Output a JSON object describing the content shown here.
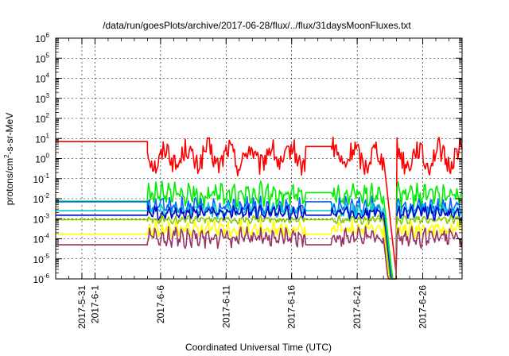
{
  "chart_data": {
    "type": "line",
    "title": "/data/run/goesPlots/archive/2017-06-28/flux/../flux/31daysMoonFluxes.txt",
    "xlabel": "Coordinated Universal Time (UTC)",
    "ylabel": "protons/cm2-s-sr-MeV",
    "ylabel_parts": {
      "base": "protons/cm",
      "sup": "2",
      "rest": "-s-sr-MeV"
    },
    "yscale": "log",
    "ylim": [
      1e-06,
      1000000.0
    ],
    "y_ticks": [
      {
        "base": "10",
        "exp": "-6"
      },
      {
        "base": "10",
        "exp": "-5"
      },
      {
        "base": "10",
        "exp": "-4"
      },
      {
        "base": "10",
        "exp": "-3"
      },
      {
        "base": "10",
        "exp": "-2"
      },
      {
        "base": "10",
        "exp": "-1"
      },
      {
        "base": "10",
        "exp": "0"
      },
      {
        "base": "10",
        "exp": "1"
      },
      {
        "base": "10",
        "exp": "2"
      },
      {
        "base": "10",
        "exp": "3"
      },
      {
        "base": "10",
        "exp": "4"
      },
      {
        "base": "10",
        "exp": "5"
      },
      {
        "base": "10",
        "exp": "6"
      }
    ],
    "xlim": [
      "2017-05-29",
      "2017-06-29"
    ],
    "x_ticks": [
      {
        "date": "2017-05-31",
        "label": "2017-5-31"
      },
      {
        "date": "2017-06-01",
        "label": "2017-6-1"
      },
      {
        "date": "2017-06-06",
        "label": "2017-6-6"
      },
      {
        "date": "2017-06-11",
        "label": "2017-6-11"
      },
      {
        "date": "2017-06-16",
        "label": "2017-6-16"
      },
      {
        "date": "2017-06-21",
        "label": "2017-6-21"
      },
      {
        "date": "2017-06-26",
        "label": "2017-6-26"
      }
    ],
    "grid": true,
    "series": [
      {
        "color": "#ff0000",
        "baseline": 7.0,
        "gap_value": 4.0,
        "active": [
          1.2,
          0.1,
          10
        ],
        "period_days": 1.6
      },
      {
        "color": "#00ee00",
        "baseline": 0.0075,
        "gap_value": 0.02,
        "active": [
          0.015,
          0.003,
          0.08
        ],
        "period_days": 0.5
      },
      {
        "color": "#0064ff",
        "baseline": 0.007,
        "gap_value": 0.007,
        "active": [
          0.004,
          0.001,
          0.012
        ],
        "period_days": 0.5
      },
      {
        "color": "#00cccc",
        "baseline": 0.0025,
        "gap_value": 0.0025,
        "active": [
          0.0025,
          0.0008,
          0.006
        ],
        "period_days": 0.5
      },
      {
        "color": "#0000cc",
        "baseline": 0.0015,
        "gap_value": 0.0015,
        "active": [
          0.002,
          0.0008,
          0.005
        ],
        "period_days": 0.5
      },
      {
        "color": "#88cc00",
        "baseline": 0.0009,
        "gap_value": 0.0009,
        "active": [
          0.0009,
          0.0005,
          0.0015
        ],
        "period_days": 0.5
      },
      {
        "color": "#ffff00",
        "baseline": 0.00017,
        "gap_value": 0.00017,
        "active": [
          0.0003,
          0.0001,
          0.0009
        ],
        "period_days": 0.5
      },
      {
        "color": "#993366",
        "baseline": 5e-05,
        "gap_value": 5e-05,
        "active": [
          0.00012,
          3e-05,
          0.0004
        ],
        "period_days": 0.5
      }
    ],
    "timeline": {
      "active_start": "2017-06-05",
      "gap_start": "2017-06-17",
      "gap_end": "2017-06-19",
      "drop_start": "2017-06-23",
      "drop_end": "2017-06-24"
    }
  }
}
